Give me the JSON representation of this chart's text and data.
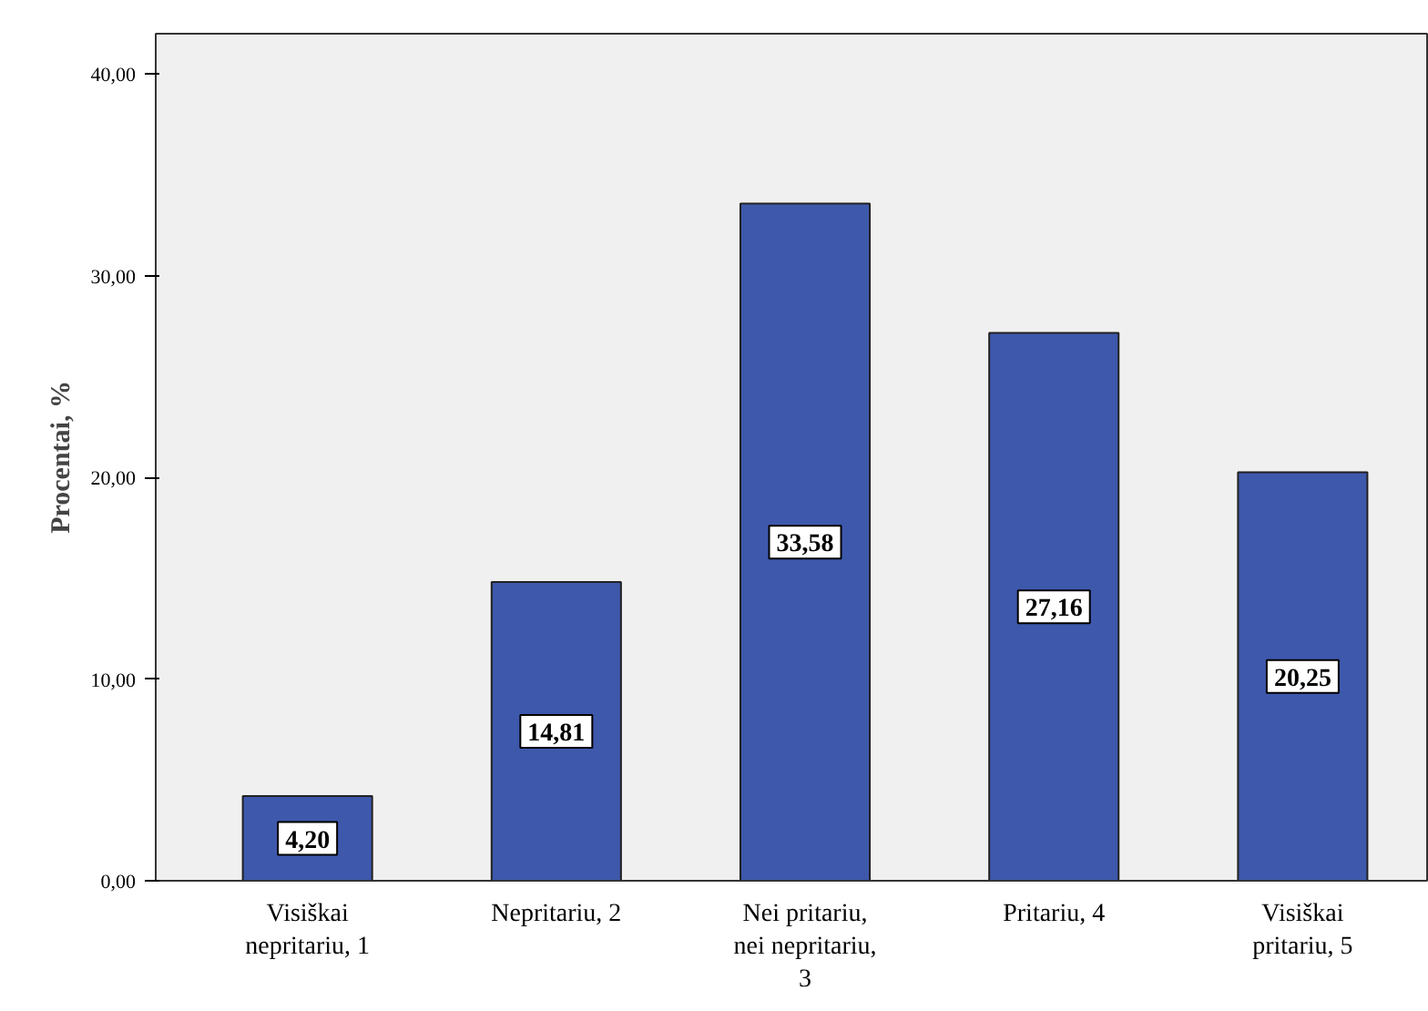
{
  "chart_data": {
    "type": "bar",
    "ylabel": "Procentai, %",
    "categories": [
      "Visiškai nepritariu, 1",
      "Nepritariu, 2",
      "Nei pritariu, nei nepritariu, 3",
      "Pritariu, 4",
      "Visiškai pritariu, 5"
    ],
    "values": [
      4.2,
      14.81,
      33.58,
      27.16,
      20.25
    ],
    "value_labels": [
      "4,20",
      "14,81",
      "33,58",
      "27,16",
      "20,25"
    ],
    "color": "#3e58ac",
    "ylim": [
      0,
      42
    ],
    "yticks": [
      {
        "value": 0,
        "label": "0,00"
      },
      {
        "value": 10,
        "label": "10,00"
      },
      {
        "value": 20,
        "label": "20,00"
      },
      {
        "value": 30,
        "label": "30,00"
      },
      {
        "value": 40,
        "label": "40,00"
      }
    ],
    "grid": false
  }
}
